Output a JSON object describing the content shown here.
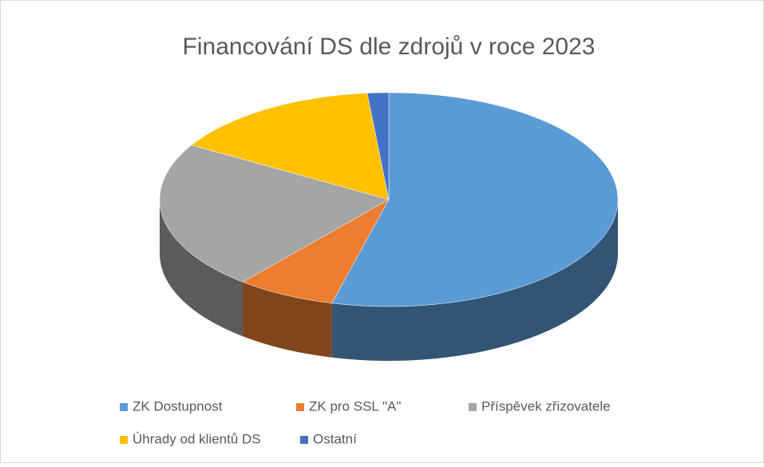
{
  "chart_data": {
    "type": "pie3d",
    "title": "Financování DS dle zdrojů v roce 2023",
    "categories": [
      "ZK Dostupnost",
      "ZK pro SSL \"A\"",
      "Příspěvek zřizovatele",
      "Úhrady od klientů DS",
      "Ostatní"
    ],
    "values": [
      54,
      7,
      22.5,
      15,
      1.5
    ],
    "colors": [
      "#5b9bd5",
      "#ed7d31",
      "#a5a5a5",
      "#ffc000",
      "#4472c4"
    ],
    "legend": "bottom"
  }
}
